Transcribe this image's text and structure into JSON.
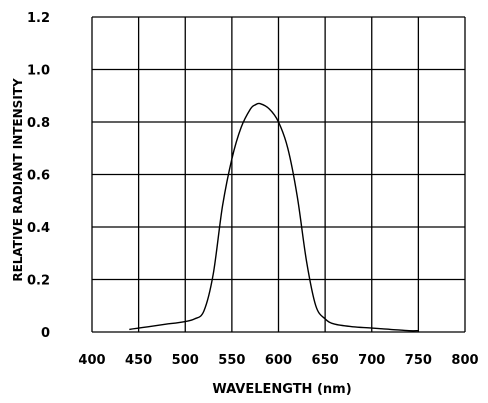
{
  "chart_data": {
    "type": "line",
    "xlabel": "WAVELENGTH (nm)",
    "ylabel": "RELATIVE RADIANT INTENSITY",
    "xlim": [
      400,
      800
    ],
    "ylim": [
      0,
      1.2
    ],
    "grid": true,
    "x_ticks": [
      "400",
      "450",
      "500",
      "550",
      "600",
      "650",
      "700",
      "750",
      "800"
    ],
    "y_ticks": [
      "0",
      "0.2",
      "0.4",
      "0.6",
      "0.8",
      "1.0",
      "1.2"
    ],
    "series": [
      {
        "x": [
          440,
          460,
          480,
          500,
          510,
          520,
          530,
          540,
          550,
          560,
          570,
          575,
          580,
          590,
          600,
          610,
          620,
          630,
          640,
          650,
          660,
          680,
          700,
          720,
          740,
          750
        ],
        "y": [
          0.01,
          0.02,
          0.03,
          0.04,
          0.05,
          0.08,
          0.22,
          0.48,
          0.66,
          0.78,
          0.85,
          0.865,
          0.87,
          0.85,
          0.8,
          0.7,
          0.52,
          0.27,
          0.1,
          0.05,
          0.03,
          0.02,
          0.015,
          0.01,
          0.005,
          0.005
        ]
      }
    ]
  }
}
